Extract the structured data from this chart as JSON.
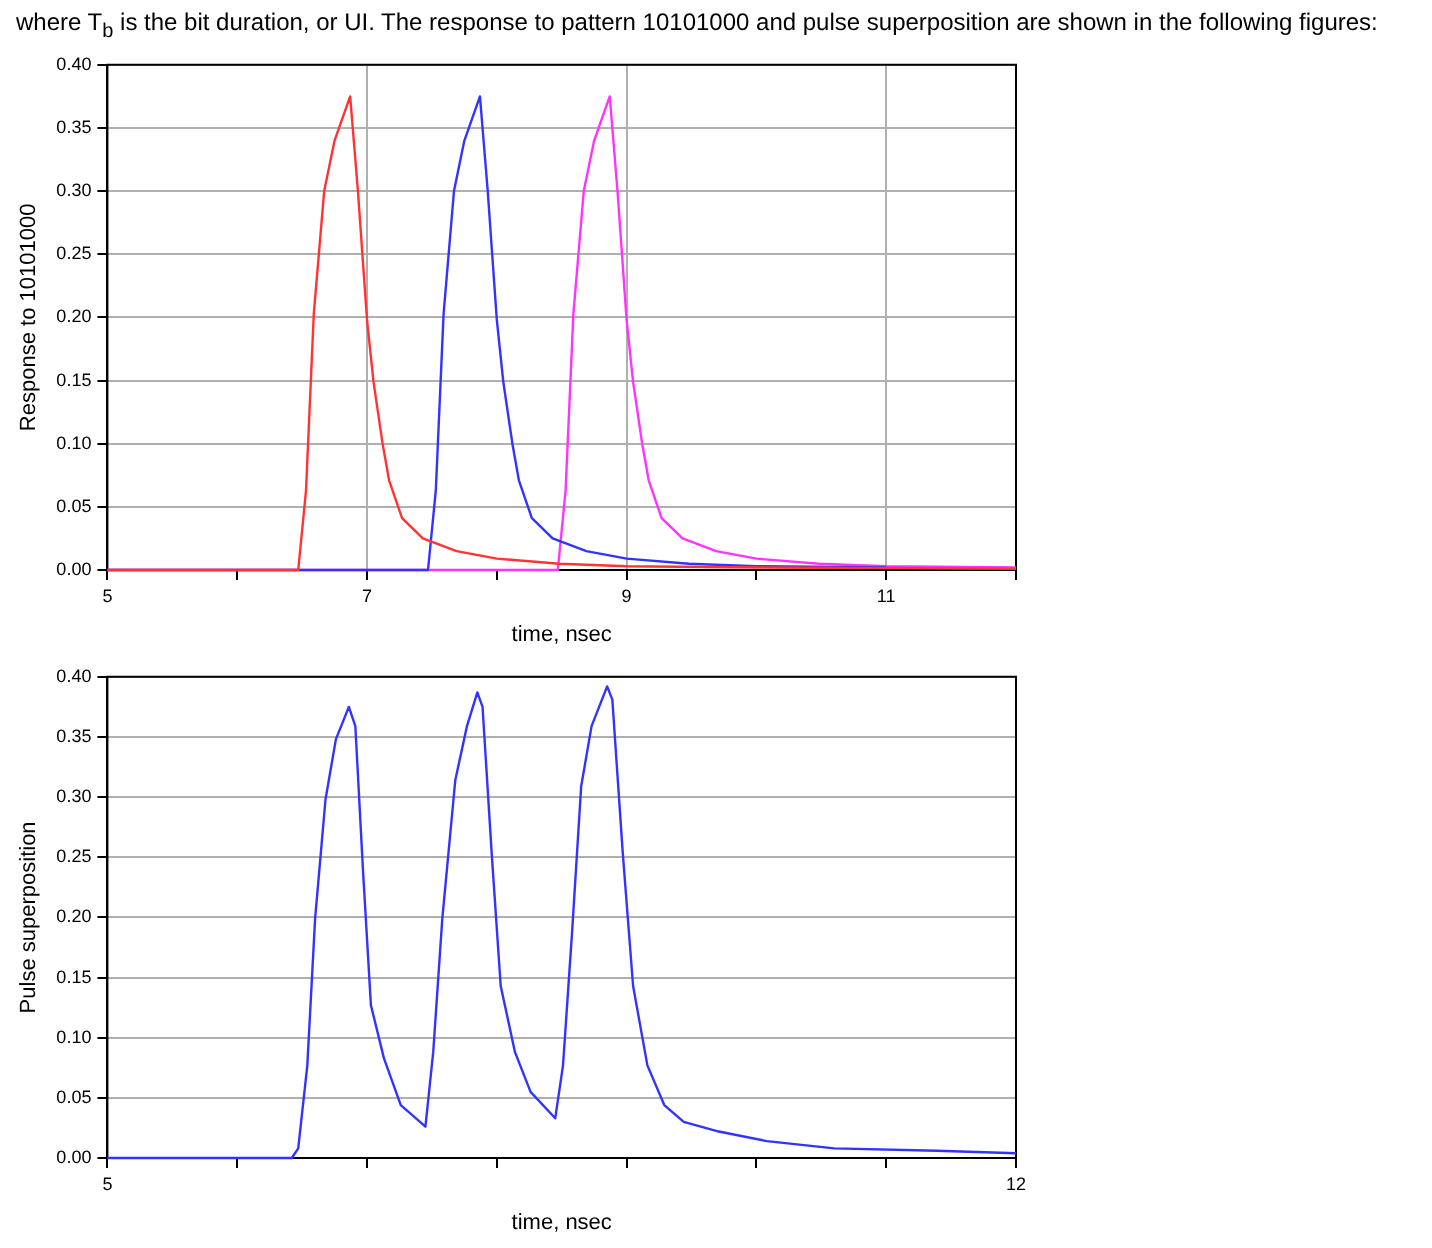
{
  "chart_data": [
    {
      "type": "line",
      "annotations": [
        "where T$_{b}$ is the bit duration, or UI. The response to pattern 10101000 and pulse superposition are shown in the following figures:"
      ],
      "xlabel": "time, nsec",
      "ylabel": "Response to 10101000",
      "xlim": [
        5,
        12
      ],
      "ylim": [
        0,
        0.4
      ],
      "xticks": [
        5,
        {
          "value": 6,
          "label": null
        },
        7,
        {
          "value": 8,
          "label": null
        },
        9,
        {
          "value": 10,
          "label": null
        },
        11,
        {
          "value": 12,
          "label": null
        }
      ],
      "yticks": [
        {
          "value": 0,
          "label": "0.00"
        },
        {
          "value": 0.05,
          "label": "0.05"
        },
        {
          "value": 0.1,
          "label": "0.10"
        },
        {
          "value": 0.15,
          "label": "0.15"
        },
        {
          "value": 0.2,
          "label": "0.20"
        },
        {
          "value": 0.25,
          "label": "0.25"
        },
        {
          "value": 0.3,
          "label": "0.30"
        },
        {
          "value": 0.35,
          "label": "0.35"
        },
        {
          "value": 0.4,
          "label": "0.40"
        }
      ],
      "grid": true,
      "series": [
        {
          "color": "#ff3333",
          "x": [
            5,
            6.47,
            6.53,
            6.59,
            6.67,
            6.75,
            6.87,
            6.93,
            7.0,
            7.05,
            7.12,
            7.17,
            7.27,
            7.43,
            7.69,
            8.0,
            8.48,
            9.0,
            10.0,
            12
          ],
          "values": [
            0,
            0,
            0.063,
            0.203,
            0.3,
            0.34,
            0.375,
            0.3,
            0.198,
            0.149,
            0.1,
            0.071,
            0.041,
            0.025,
            0.015,
            0.009,
            0.005,
            0.003,
            0.002,
            0.001
          ]
        },
        {
          "color": "#3333ff",
          "x": [
            5,
            7.47,
            7.53,
            7.59,
            7.67,
            7.75,
            7.87,
            7.93,
            8.0,
            8.05,
            8.12,
            8.17,
            8.27,
            8.43,
            8.69,
            9.0,
            9.48,
            10.0,
            11.0
          ],
          "values": [
            0,
            0,
            0.063,
            0.203,
            0.3,
            0.34,
            0.375,
            0.3,
            0.198,
            0.149,
            0.1,
            0.071,
            0.041,
            0.025,
            0.015,
            0.009,
            0.005,
            0.003,
            0.002
          ]
        },
        {
          "color": "#ff33ff",
          "x": [
            5,
            8.47,
            8.53,
            8.59,
            8.67,
            8.75,
            8.87,
            8.93,
            9.0,
            9.05,
            9.12,
            9.17,
            9.27,
            9.43,
            9.69,
            10.0,
            10.48,
            11.0,
            12
          ],
          "values": [
            0,
            0,
            0.063,
            0.203,
            0.3,
            0.34,
            0.375,
            0.3,
            0.198,
            0.149,
            0.1,
            0.071,
            0.041,
            0.025,
            0.015,
            0.009,
            0.005,
            0.003,
            0.002
          ]
        }
      ]
    },
    {
      "type": "line",
      "xlabel": "time, nsec",
      "ylabel": "Pulse superposition",
      "xlim": [
        5,
        12
      ],
      "ylim": [
        0,
        0.4
      ],
      "xticks": [
        5,
        {
          "value": 6,
          "label": null
        },
        {
          "value": 7,
          "label": null
        },
        {
          "value": 8,
          "label": null
        },
        {
          "value": 9,
          "label": null
        },
        {
          "value": 10,
          "label": null
        },
        {
          "value": 11,
          "label": null
        },
        12
      ],
      "yticks": [
        {
          "value": 0,
          "label": "0.00"
        },
        {
          "value": 0.05,
          "label": "0.05"
        },
        {
          "value": 0.1,
          "label": "0.10"
        },
        {
          "value": 0.15,
          "label": "0.15"
        },
        {
          "value": 0.2,
          "label": "0.20"
        },
        {
          "value": 0.25,
          "label": "0.25"
        },
        {
          "value": 0.3,
          "label": "0.30"
        },
        {
          "value": 0.35,
          "label": "0.35"
        },
        {
          "value": 0.4,
          "label": "0.40"
        }
      ],
      "grid": "y",
      "series": [
        {
          "color": "#3333ff",
          "x": [
            5,
            6.42,
            6.47,
            6.54,
            6.6,
            6.68,
            6.76,
            6.86,
            6.91,
            6.97,
            7.03,
            7.13,
            7.26,
            7.45,
            7.51,
            7.58,
            7.68,
            7.77,
            7.85,
            7.89,
            7.96,
            8.03,
            8.14,
            8.26,
            8.45,
            8.51,
            8.58,
            8.65,
            8.73,
            8.85,
            8.89,
            8.97,
            9.05,
            9.16,
            9.29,
            9.44,
            9.71,
            10.08,
            10.6,
            11.39,
            12
          ],
          "values": [
            0,
            0,
            0.008,
            0.077,
            0.199,
            0.298,
            0.348,
            0.375,
            0.359,
            0.237,
            0.127,
            0.083,
            0.044,
            0.026,
            0.088,
            0.199,
            0.314,
            0.359,
            0.387,
            0.375,
            0.254,
            0.143,
            0.088,
            0.055,
            0.033,
            0.077,
            0.188,
            0.309,
            0.359,
            0.392,
            0.381,
            0.254,
            0.143,
            0.077,
            0.044,
            0.03,
            0.022,
            0.014,
            0.008,
            0.006,
            0.004
          ]
        }
      ]
    }
  ]
}
